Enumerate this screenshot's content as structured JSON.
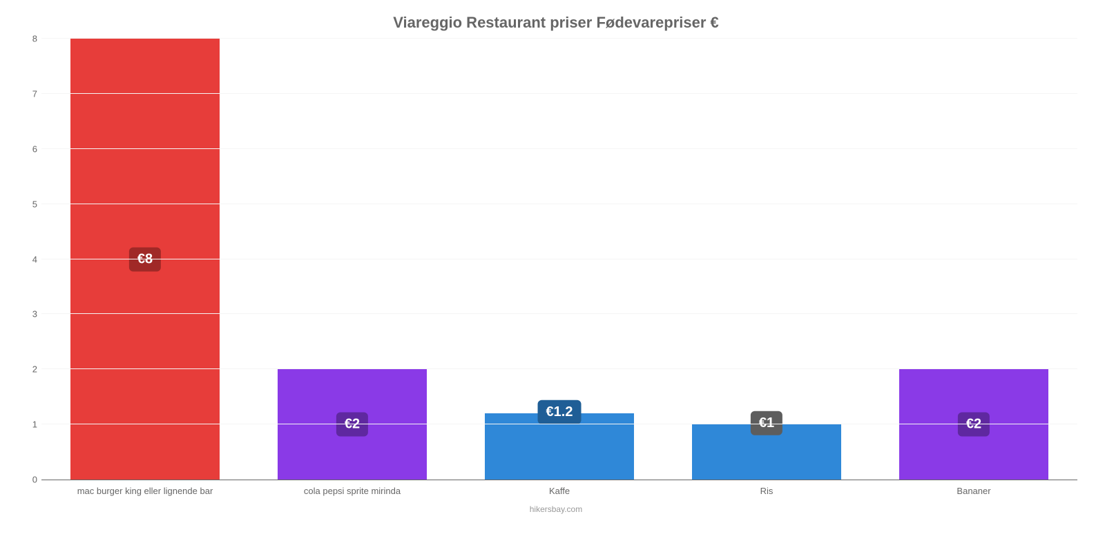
{
  "chart": {
    "type": "bar",
    "title": "Viareggio Restaurant priser Fødevarepriser €",
    "title_fontsize": 22,
    "title_color": "#666666",
    "credits": "hikersbay.com",
    "credits_color": "#999999",
    "credits_fontsize": 12,
    "background_color": "#ffffff",
    "grid_color": "#f5f5f5",
    "axis_color": "#666666",
    "label_color": "#666666",
    "label_fontsize": 13,
    "ylim": [
      0,
      8
    ],
    "ytick_step": 1,
    "yticks": [
      0,
      1,
      2,
      3,
      4,
      5,
      6,
      7,
      8
    ],
    "bar_width_ratio": 0.72,
    "badge_fontsize": 20,
    "badge_radius": 6,
    "categories": [
      "mac burger king eller lignende bar",
      "cola pepsi sprite mirinda",
      "Kaffe",
      "Ris",
      "Bananer"
    ],
    "values": [
      8,
      2,
      1.2,
      1,
      2
    ],
    "value_labels": [
      "€8",
      "€2",
      "€1.2",
      "€1",
      "€2"
    ],
    "bar_colors": [
      "#e73d3a",
      "#8a3ae7",
      "#2f88d8",
      "#2f88d8",
      "#8a3ae7"
    ],
    "badge_bg_colors": [
      "#a02927",
      "#5f28a0",
      "#1f5e96",
      "#5d5d5d",
      "#5f28a0"
    ],
    "badge_text_color": "#ffffff"
  }
}
